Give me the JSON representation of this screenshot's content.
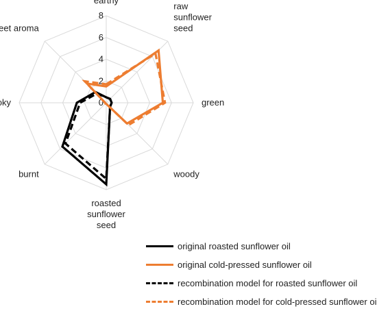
{
  "chart_data": {
    "type": "radar",
    "axes": [
      "earthy",
      "raw sunflower seed",
      "green",
      "woody",
      "roasted sunflower seed",
      "burnt",
      "smoky",
      "sweet aroma"
    ],
    "axis_label_lines": [
      [
        "earthy"
      ],
      [
        "raw",
        "sunflower",
        "seed"
      ],
      [
        "green"
      ],
      [
        "woody"
      ],
      [
        "roasted",
        "sunflower",
        "seed"
      ],
      [
        "burnt"
      ],
      [
        "smoky"
      ],
      [
        "sweet aroma"
      ]
    ],
    "range": [
      0,
      8
    ],
    "ticks": [
      "0",
      "2",
      "4",
      "6",
      "8"
    ],
    "grid": true,
    "legend_position": "bottom-right",
    "series": [
      {
        "name": "original roasted sunflower oil",
        "color": "#000000",
        "dashed": false,
        "values": [
          0.5,
          0.5,
          0.5,
          0.5,
          7.5,
          5.7,
          2.7,
          1.4
        ]
      },
      {
        "name": "original cold-pressed sunflower oil",
        "color": "#ED7D31",
        "dashed": false,
        "values": [
          1.5,
          6.8,
          5.2,
          2.7,
          0.1,
          0.1,
          0.1,
          2.5
        ]
      },
      {
        "name": "recombination model for roasted sunflower oil",
        "color": "#000000",
        "dashed": true,
        "values": [
          0.5,
          0.5,
          0.5,
          0.5,
          7.0,
          5.3,
          2.4,
          1.2
        ]
      },
      {
        "name": "recombination model for cold-pressed sunflower oil",
        "color": "#ED7D31",
        "dashed": true,
        "values": [
          1.7,
          6.4,
          5.4,
          2.9,
          0.1,
          0.1,
          0.1,
          2.8
        ]
      }
    ]
  }
}
